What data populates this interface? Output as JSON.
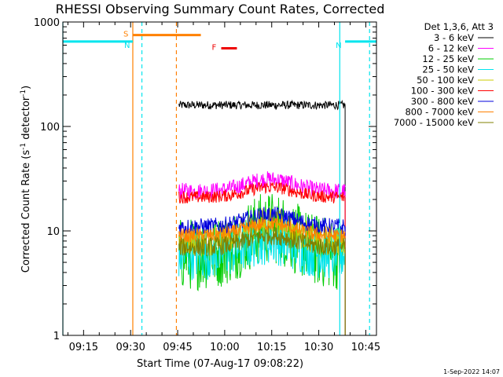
{
  "chart_data": {
    "type": "line",
    "title": "RHESSI Observing Summary Count Rates, Corrected",
    "xlabel": "Start Time (07-Aug-17 09:08:22)",
    "ylabel": "Corrected Count Rate (s⁻¹ detector⁻¹)",
    "ylabel_parts": {
      "before": "Corrected Count Rate (s",
      "sup1": "-1",
      "middle": " detector",
      "sup2": "-1",
      "after": ")"
    },
    "y_scale": "log",
    "ylim": [
      1,
      1000
    ],
    "xlim_minutes": [
      0,
      100
    ],
    "x_ticks": [
      {
        "label": "09:15",
        "minute": 6.6
      },
      {
        "label": "09:30",
        "minute": 21.6
      },
      {
        "label": "09:45",
        "minute": 36.6
      },
      {
        "label": "10:00",
        "minute": 51.6
      },
      {
        "label": "10:15",
        "minute": 66.6
      },
      {
        "label": "10:30",
        "minute": 81.6
      },
      {
        "label": "10:45",
        "minute": 96.6
      }
    ],
    "y_ticks": [
      {
        "label": "1",
        "value": 1
      },
      {
        "label": "10",
        "value": 10
      },
      {
        "label": "100",
        "value": 100
      },
      {
        "label": "1000",
        "value": 1000
      }
    ],
    "legend_header": "Det 1,3,6, Att 3",
    "legend_position": "right",
    "data_window_minutes": [
      37,
      90
    ],
    "series": [
      {
        "name": "3 - 6 keV",
        "color": "#000000",
        "base": 160,
        "bump": 1.0,
        "noise": 0.04
      },
      {
        "name": "6 - 12 keV",
        "color": "#ff00ff",
        "base": 24,
        "bump": 1.3,
        "noise": 0.08
      },
      {
        "name": "12 - 25 keV",
        "color": "#00cc00",
        "base": 6,
        "bump": 1.8,
        "noise": 0.35
      },
      {
        "name": "25 - 50 keV",
        "color": "#00e5ee",
        "base": 6,
        "bump": 1.4,
        "noise": 0.25
      },
      {
        "name": "50 - 100 keV",
        "color": "#cccc00",
        "base": 8,
        "bump": 1.5,
        "noise": 0.15
      },
      {
        "name": "100 - 300 keV",
        "color": "#ff0000",
        "base": 21,
        "bump": 1.25,
        "noise": 0.06
      },
      {
        "name": "300 - 800 keV",
        "color": "#0000dd",
        "base": 11,
        "bump": 1.3,
        "noise": 0.08
      },
      {
        "name": "800 - 7000 keV",
        "color": "#ff8000",
        "base": 9,
        "bump": 1.3,
        "noise": 0.07
      },
      {
        "name": "7000 - 15000 keV",
        "color": "#808000",
        "base": 7,
        "bump": 1.3,
        "noise": 0.09
      }
    ],
    "intervals": [
      {
        "label": "S",
        "color": "#ff8000",
        "start": 22.3,
        "end": 44,
        "y_value": 750
      },
      {
        "label": "N",
        "color": "#00e5ee",
        "start": 0,
        "end": 22.3,
        "y_value": 650
      },
      {
        "label": "N",
        "color": "#00e5ee",
        "start": 90,
        "end": 100,
        "y_value": 650
      },
      {
        "label": "F",
        "color": "#ee0000",
        "start": 50.5,
        "end": 55.5,
        "y_value": 560
      }
    ],
    "vertical_lines": [
      {
        "minute": 0,
        "color": "#00e5ee",
        "style": "solid"
      },
      {
        "minute": 22.3,
        "color": "#ff8000",
        "style": "solid"
      },
      {
        "minute": 25.2,
        "color": "#00e5ee",
        "style": "dashed"
      },
      {
        "minute": 36.2,
        "color": "#ff8000",
        "style": "dashed"
      },
      {
        "minute": 88.3,
        "color": "#00e5ee",
        "style": "solid"
      },
      {
        "minute": 97.8,
        "color": "#00e5ee",
        "style": "dashed"
      }
    ],
    "grid": false
  },
  "footer_date": "1-Sep-2022 14:07"
}
